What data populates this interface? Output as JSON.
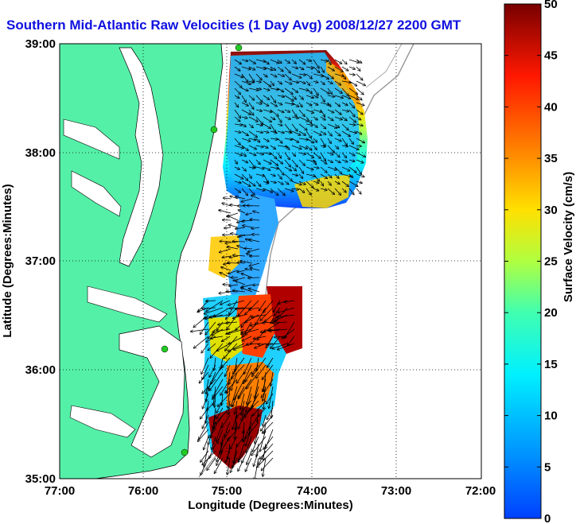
{
  "title": "Southern Mid-Atlantic Raw Velocities (1 Day Avg) 2008/12/27 2200 GMT",
  "axes": {
    "xlabel": "Longitude (Degrees:Minutes)",
    "ylabel": "Latitude (Degrees:Minutes)",
    "xticks": [
      "77:00",
      "76:00",
      "75:00",
      "74:00",
      "73:00",
      "72:00"
    ],
    "yticks": [
      "39:00",
      "38:00",
      "37:00",
      "36:00",
      "35:00"
    ]
  },
  "colorbar": {
    "label": "Surface Velocity (cm/s)",
    "ticks": [
      "0",
      "5",
      "10",
      "15",
      "20",
      "25",
      "30",
      "35",
      "40",
      "45",
      "50"
    ],
    "min": 0,
    "max": 50
  },
  "colors": {
    "land": "#55f0a8",
    "title": "#1010e0",
    "station": "#22cc22"
  },
  "stations": [
    "station-1",
    "station-2",
    "station-3",
    "station-4"
  ]
}
